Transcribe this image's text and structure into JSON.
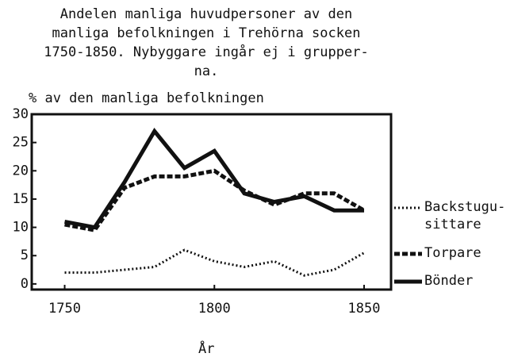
{
  "chart_data": {
    "type": "line",
    "title": "Andelen manliga huvudpersoner av den\nmanliga befolkningen i Trehörna socken\n1750-1850. Nybyggare ingår ej i grupper-\nna.",
    "y_label": "% av den manliga befolkningen",
    "x_label": "År",
    "x": [
      1750,
      1760,
      1770,
      1780,
      1790,
      1800,
      1810,
      1820,
      1830,
      1840,
      1850
    ],
    "series": [
      {
        "name": "Backstugu-\nsittare",
        "color": "#111111",
        "style": "dotted",
        "values": [
          2,
          2,
          2.5,
          3,
          6,
          4,
          3,
          4,
          1.5,
          2.5,
          5.5
        ]
      },
      {
        "name": "Torpare",
        "color": "#111111",
        "style": "dashed",
        "values": [
          10.5,
          9.5,
          17,
          19,
          19,
          20,
          16.5,
          14,
          16,
          16,
          13
        ]
      },
      {
        "name": "Bönder",
        "color": "#111111",
        "style": "solid",
        "values": [
          11,
          10,
          18,
          27,
          20.5,
          23.5,
          16,
          14.5,
          15.5,
          13,
          13
        ]
      }
    ],
    "xlim": [
      1739,
      1859
    ],
    "xticks": [
      1750,
      1800,
      1850
    ],
    "ylim": [
      -1,
      30
    ],
    "yticks": [
      0,
      5,
      10,
      15,
      20,
      25,
      30
    ],
    "legend": "right"
  }
}
